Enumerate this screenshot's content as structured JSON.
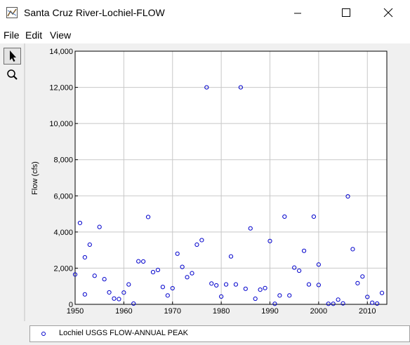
{
  "window": {
    "title": "Santa Cruz River-Lochiel-FLOW"
  },
  "menu": [
    "File",
    "Edit",
    "View"
  ],
  "tools": [
    {
      "name": "select-tool",
      "icon": "arrow-pointer-icon"
    },
    {
      "name": "zoom-tool",
      "icon": "magnifier-icon"
    }
  ],
  "colors": {
    "marker": "#0000cc",
    "grid": "#c8c8c8",
    "plot_bg": "#ffffff"
  },
  "chart_data": {
    "type": "scatter",
    "title": "",
    "xlabel": "",
    "ylabel": "Flow (cfs)",
    "xlim": [
      1950,
      2014
    ],
    "ylim": [
      0,
      14000
    ],
    "xticks": [
      1950,
      1960,
      1970,
      1980,
      1990,
      2000,
      2010
    ],
    "xtick_labels": [
      "1950",
      "1960",
      "1970",
      "1980",
      "1990",
      "2000",
      "2010"
    ],
    "yticks": [
      0,
      2000,
      4000,
      6000,
      8000,
      10000,
      12000,
      14000
    ],
    "ytick_labels": [
      "0",
      "2,000",
      "4,000",
      "6,000",
      "8,000",
      "10,000",
      "12,000",
      "14,000"
    ],
    "grid": true,
    "legend_position": "bottom",
    "series": [
      {
        "name": "Lochiel USGS FLOW-ANNUAL PEAK",
        "marker": "open-circle",
        "x": [
          1950,
          1951,
          1952,
          1952,
          1953,
          1954,
          1955,
          1956,
          1957,
          1958,
          1959,
          1960,
          1961,
          1962,
          1963,
          1964,
          1965,
          1966,
          1967,
          1968,
          1969,
          1970,
          1971,
          1972,
          1973,
          1974,
          1975,
          1976,
          1977,
          1978,
          1979,
          1980,
          1981,
          1982,
          1983,
          1984,
          1985,
          1986,
          1987,
          1988,
          1989,
          1990,
          1991,
          1992,
          1993,
          1994,
          1995,
          1996,
          1997,
          1998,
          1999,
          2000,
          2000,
          2002,
          2003,
          2004,
          2005,
          2006,
          2007,
          2008,
          2009,
          2010,
          2011,
          2012,
          2013
        ],
        "y": [
          1650,
          4500,
          2600,
          550,
          3300,
          1580,
          4280,
          1390,
          660,
          320,
          290,
          650,
          1100,
          40,
          2380,
          2370,
          4830,
          1780,
          1900,
          960,
          490,
          890,
          2800,
          2070,
          1500,
          1720,
          3300,
          3550,
          12000,
          1150,
          1050,
          430,
          1100,
          2650,
          1100,
          12000,
          860,
          4200,
          310,
          810,
          900,
          3500,
          30,
          490,
          4850,
          490,
          2030,
          1860,
          2960,
          1100,
          4850,
          2200,
          1070,
          30,
          30,
          260,
          50,
          5970,
          3050,
          1170,
          1540,
          410,
          90,
          40,
          630
        ]
      }
    ]
  }
}
